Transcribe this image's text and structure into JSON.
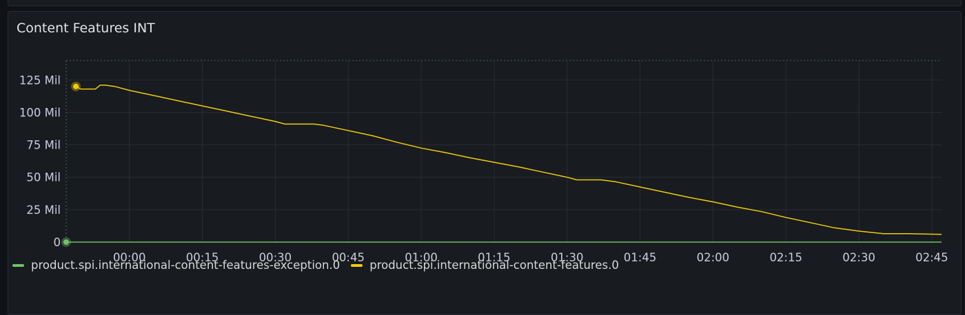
{
  "panel": {
    "title": "Content Features INT"
  },
  "chart_data": {
    "type": "line",
    "title": "Content Features INT",
    "xlabel": "",
    "ylabel": "",
    "ylim": [
      0,
      140
    ],
    "y_unit": "Mil",
    "y_ticks": [
      {
        "value": 0,
        "label": "0"
      },
      {
        "value": 25,
        "label": "25 Mil"
      },
      {
        "value": 50,
        "label": "50 Mil"
      },
      {
        "value": 75,
        "label": "75 Mil"
      },
      {
        "value": 100,
        "label": "100 Mil"
      },
      {
        "value": 125,
        "label": "125 Mil"
      }
    ],
    "xlim": [
      "23:47",
      "02:47"
    ],
    "x_ticks": [
      "00:00",
      "00:15",
      "00:30",
      "00:45",
      "01:00",
      "01:15",
      "01:30",
      "01:45",
      "02:00",
      "02:15",
      "02:30",
      "02:45"
    ],
    "grid": true,
    "legend_position": "bottom",
    "series": [
      {
        "name": "product.spi.international-content-features-exception.0",
        "color": "#73bf69",
        "x": [
          "23:47",
          "02:47"
        ],
        "y": [
          0,
          0
        ]
      },
      {
        "name": "product.spi.international-content-features.0",
        "color": "#f2cc0c",
        "x": [
          "23:49",
          "23:50",
          "23:53",
          "23:54",
          "23:55",
          "23:57",
          "00:00",
          "00:05",
          "00:10",
          "00:15",
          "00:20",
          "00:25",
          "00:30",
          "00:32",
          "00:35",
          "00:38",
          "00:40",
          "00:45",
          "00:50",
          "00:55",
          "01:00",
          "01:05",
          "01:10",
          "01:15",
          "01:20",
          "01:25",
          "01:30",
          "01:32",
          "01:35",
          "01:37",
          "01:40",
          "01:45",
          "01:50",
          "01:55",
          "02:00",
          "02:05",
          "02:10",
          "02:15",
          "02:20",
          "02:25",
          "02:30",
          "02:35",
          "02:37",
          "02:40",
          "02:47"
        ],
        "y": [
          120,
          118,
          118,
          121,
          121,
          120,
          117,
          113,
          109,
          105,
          101,
          97,
          93,
          91,
          91,
          91,
          90,
          86,
          82,
          77,
          72.5,
          69,
          65,
          61.5,
          58,
          54,
          50,
          48,
          48,
          48,
          46.5,
          42.5,
          38.5,
          34.5,
          31,
          27,
          23.5,
          19,
          15,
          11,
          8.5,
          6.5,
          6.5,
          6.5,
          6
        ]
      }
    ]
  }
}
